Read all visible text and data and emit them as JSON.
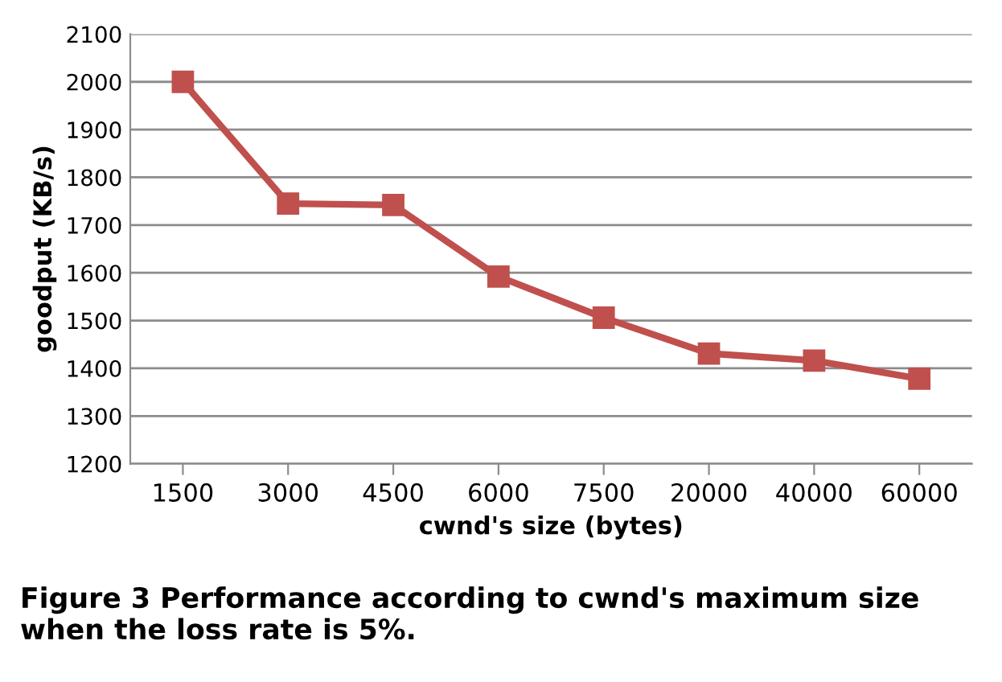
{
  "chart_data": {
    "type": "line",
    "xlabel": "cwnd's size (bytes)",
    "ylabel": "goodput (KB/s)",
    "categories": [
      "1500",
      "3000",
      "4500",
      "6000",
      "7500",
      "20000",
      "40000",
      "60000"
    ],
    "series": [
      {
        "color": "#c0504d",
        "values": [
          2000,
          1745,
          1742,
          1592,
          1506,
          1431,
          1416,
          1378
        ]
      }
    ],
    "ylim": [
      1200,
      2100
    ],
    "yticks": [
      1200,
      1300,
      1400,
      1500,
      1600,
      1700,
      1800,
      1900,
      2000,
      2100
    ],
    "grid": "y",
    "marker": "square",
    "line_style": "solid",
    "annotations": [
      "Figure 3 Performance according to cwnd's maximum size when the loss rate is 5%."
    ]
  }
}
